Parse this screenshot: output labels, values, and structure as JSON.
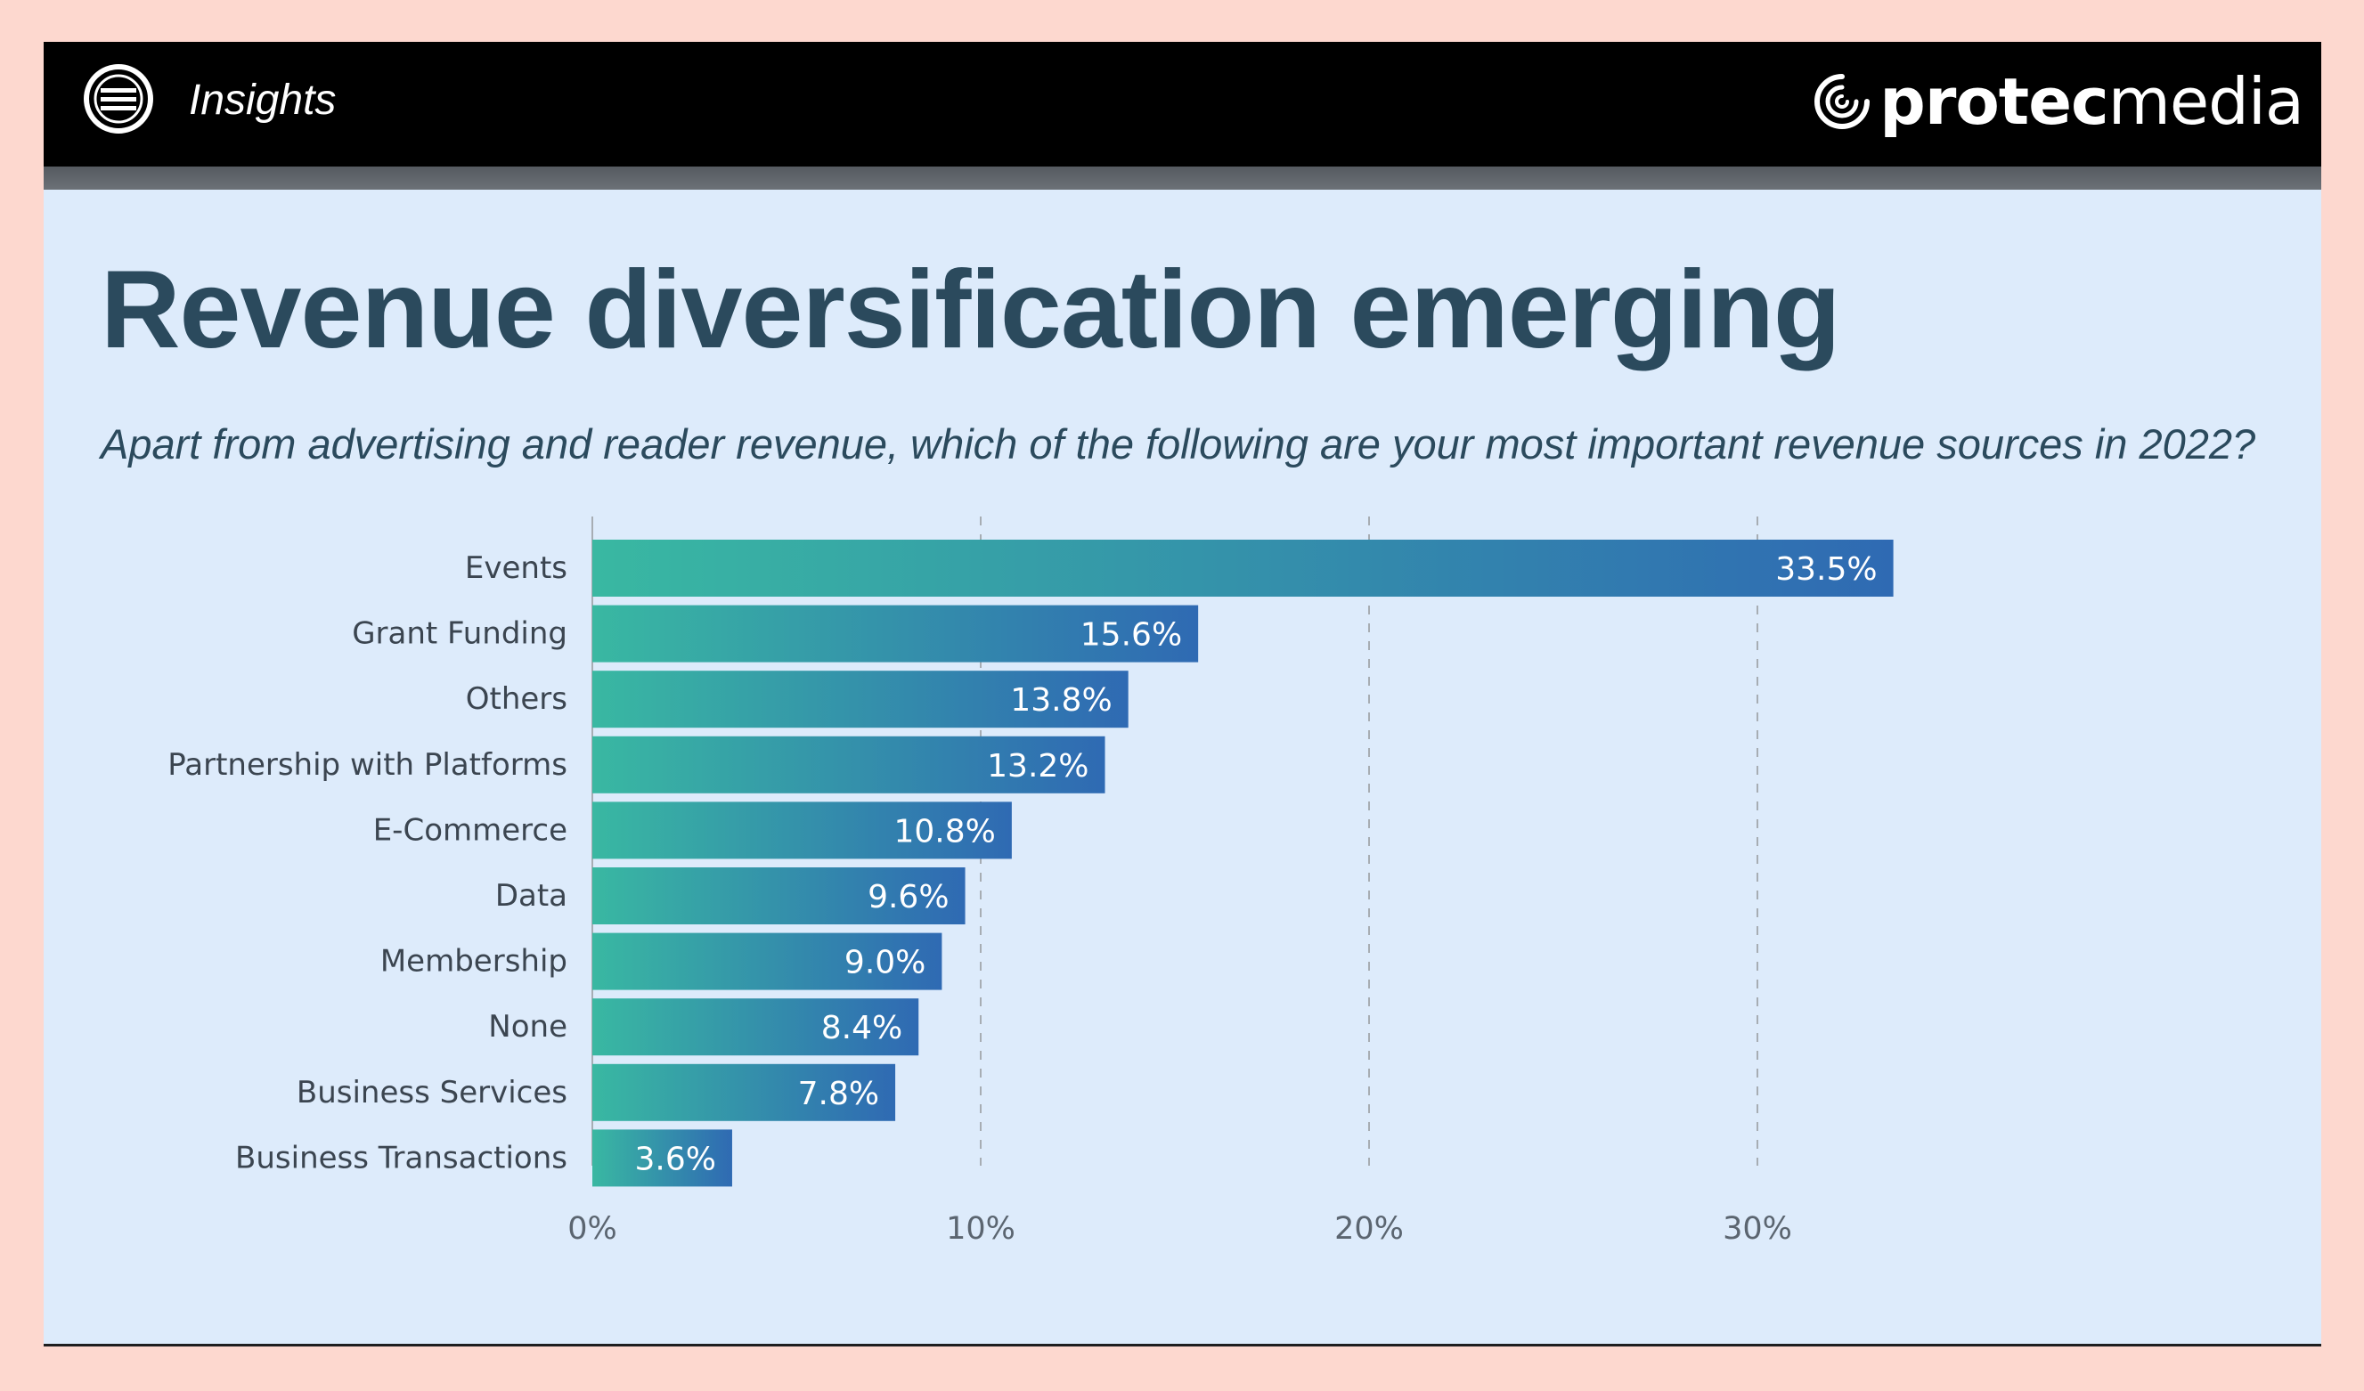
{
  "header": {
    "section_label": "Insights",
    "brand_strong": "protec",
    "brand_light": "media",
    "logo_icon": "wan-ifra-logo-icon",
    "brand_icon": "protecmedia-swirl-icon"
  },
  "slide": {
    "title": "Revenue diversification emerging",
    "subtitle": "Apart from advertising and reader revenue, which of the following are your most important revenue sources in 2022?"
  },
  "colors": {
    "background": "#fdd8cf",
    "slide": "#ddebfb",
    "title": "#2b4a5d",
    "bar_start": "#39b8a2",
    "bar_end": "#2f6ab3",
    "grid": "#a7adb3"
  },
  "chart_data": {
    "type": "bar",
    "orientation": "horizontal",
    "categories": [
      "Events",
      "Grant Funding",
      "Others",
      "Partnership with Platforms",
      "E-Commerce",
      "Data",
      "Membership",
      "None",
      "Business Services",
      "Business Transactions"
    ],
    "values": [
      33.5,
      15.6,
      13.8,
      13.2,
      10.8,
      9.6,
      9.0,
      8.4,
      7.8,
      3.6
    ],
    "value_labels": [
      "33.5%",
      "15.6%",
      "13.8%",
      "13.2%",
      "10.8%",
      "9.6%",
      "9.0%",
      "8.4%",
      "7.8%",
      "3.6%"
    ],
    "xlim": [
      0,
      35
    ],
    "xticks": [
      0,
      10,
      20,
      30
    ],
    "xtick_labels": [
      "0%",
      "10%",
      "20%",
      "30%"
    ],
    "grid": "vertical dashed",
    "legend": "none"
  }
}
